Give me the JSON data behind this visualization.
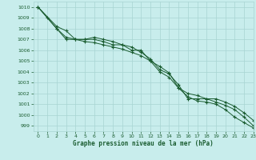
{
  "title": "Graphe pression niveau de la mer (hPa)",
  "background_color": "#c8edec",
  "grid_color": "#a8d4d2",
  "line_color": "#1a5c30",
  "xlim": [
    -0.5,
    23
  ],
  "ylim": [
    998.5,
    1010.5
  ],
  "yticks": [
    999,
    1000,
    1001,
    1002,
    1003,
    1004,
    1005,
    1006,
    1007,
    1008,
    1009,
    1010
  ],
  "xticks": [
    0,
    1,
    2,
    3,
    4,
    5,
    6,
    7,
    8,
    9,
    10,
    11,
    12,
    13,
    14,
    15,
    16,
    17,
    18,
    19,
    20,
    21,
    22,
    23
  ],
  "series": [
    {
      "x": [
        0,
        1,
        2,
        3,
        4,
        5,
        6,
        7,
        8,
        9,
        10,
        11,
        12,
        13,
        14,
        15,
        16,
        17,
        18,
        19,
        20,
        21,
        22,
        23
      ],
      "y": [
        1010.0,
        1009.0,
        1008.0,
        1007.2,
        1007.0,
        1007.0,
        1007.0,
        1006.8,
        1006.5,
        1006.5,
        1006.0,
        1006.0,
        1005.0,
        1004.0,
        1003.5,
        1002.5,
        1001.7,
        1001.3,
        1001.2,
        1001.0,
        1000.5,
        999.8,
        999.3,
        998.8
      ]
    },
    {
      "x": [
        0,
        2,
        3,
        4,
        5,
        6,
        7,
        8,
        9,
        10,
        11,
        12,
        13,
        14,
        15,
        16,
        17,
        18,
        19,
        20,
        21,
        22,
        23
      ],
      "y": [
        1010.0,
        1008.0,
        1007.0,
        1007.0,
        1007.0,
        1007.2,
        1007.0,
        1006.8,
        1006.5,
        1006.3,
        1005.8,
        1005.2,
        1004.2,
        1003.8,
        1002.8,
        1001.5,
        1001.5,
        1001.5,
        1001.5,
        1001.2,
        1000.8,
        1000.2,
        999.5
      ]
    },
    {
      "x": [
        0,
        2,
        3,
        4,
        5,
        6,
        7,
        8,
        9,
        10,
        11,
        12,
        13,
        14,
        15,
        16,
        17,
        18,
        19,
        20,
        21,
        22,
        23
      ],
      "y": [
        1010.0,
        1008.2,
        1007.8,
        1007.0,
        1006.8,
        1006.7,
        1006.5,
        1006.3,
        1006.1,
        1005.8,
        1005.5,
        1005.0,
        1004.5,
        1003.9,
        1002.5,
        1002.0,
        1001.8,
        1001.5,
        1001.2,
        1000.9,
        1000.5,
        999.8,
        999.0
      ]
    }
  ]
}
